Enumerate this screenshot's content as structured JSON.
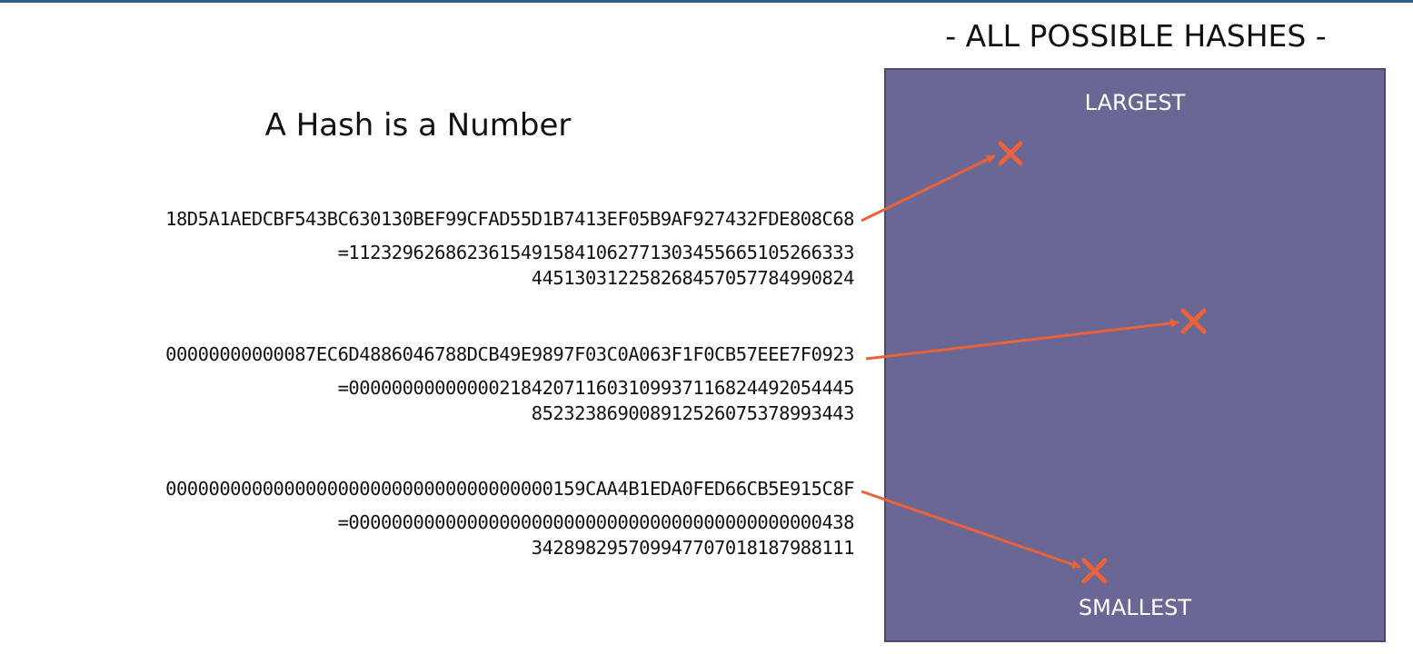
{
  "slide": {
    "title": "A Hash is a Number"
  },
  "panel": {
    "title": "- ALL POSSIBLE HASHES -",
    "top_label": "LARGEST",
    "bottom_label": "SMALLEST",
    "fill_color": "#6b6794"
  },
  "hashes": [
    {
      "hex": "18D5A1AEDCBF543BC630130BEF99CFAD55D1B7413EF05B9AF927432FDE808C68",
      "decimal_line1": "=11232962686236154915841062771303455665105266333",
      "decimal_line2": "44513031225826845705778499082­4"
    },
    {
      "hex": "00000000000087EC6D4886046788DCB49E9897F03C0A063F1F0CB57EEE7F0923",
      "decimal_line1": "=00000000000000218420711603109937116824492054445",
      "decimal_line2": "852323869008912526075378993443"
    },
    {
      "hex": "000000000000000000000000000000000000159CAA4B1EDA0FED66CB5E915C8F",
      "decimal_line1": "=00000000000000000000000000000000000000000000438",
      "decimal_line2": "342898295709947707018187988111"
    }
  ],
  "colors": {
    "arrow": "#e8623a",
    "marker": "#e8623a",
    "accent_rule": "#2e5f88"
  },
  "marker_icon": "x-mark-icon"
}
